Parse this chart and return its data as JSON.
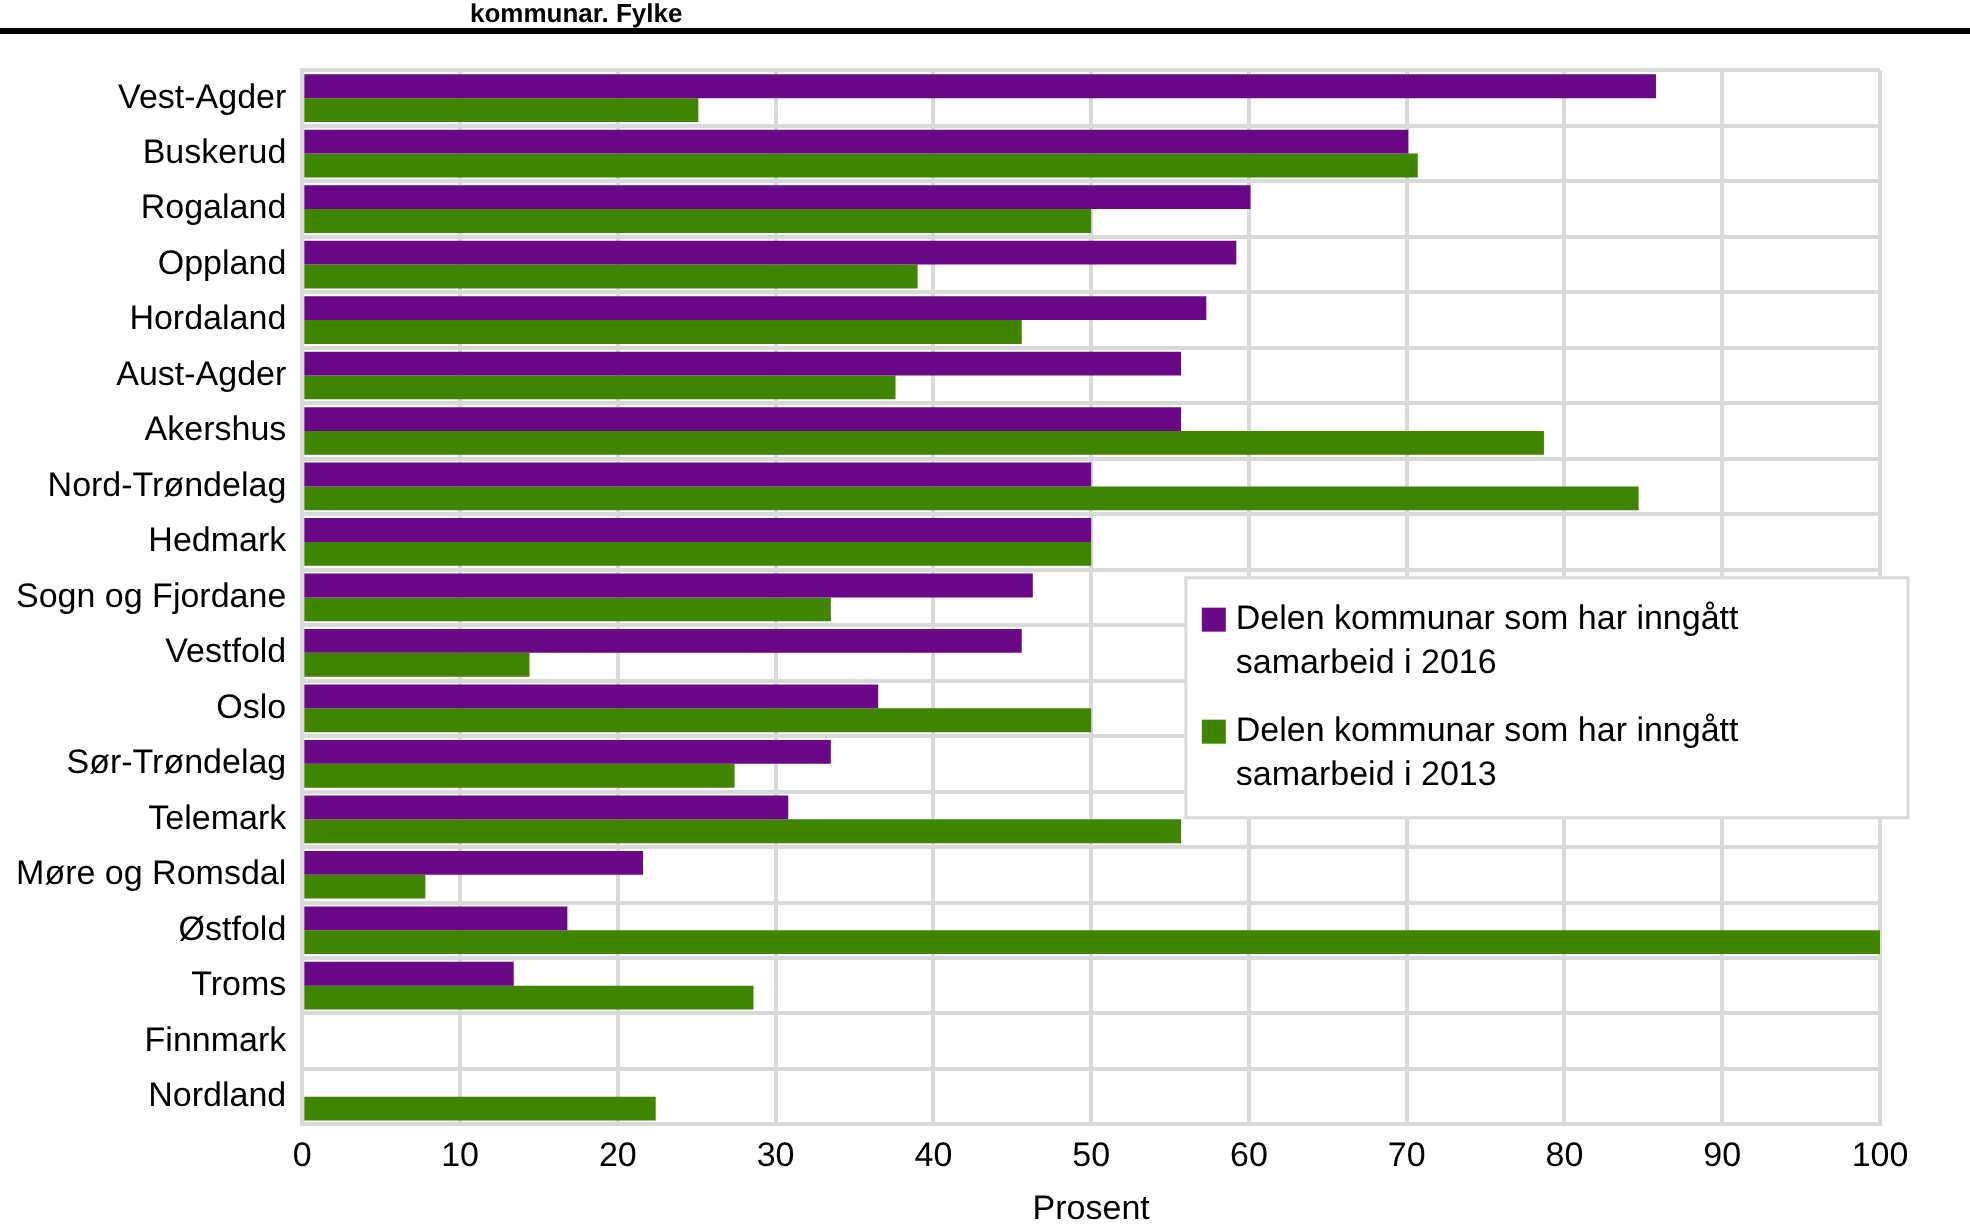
{
  "chart_data": {
    "type": "bar",
    "orientation": "horizontal",
    "title": "kommunar. Fylke",
    "xlabel": "Prosent",
    "categories": [
      "Vest-Agder",
      "Buskerud",
      "Rogaland",
      "Oppland",
      "Hordaland",
      "Aust-Agder",
      "Akershus",
      "Nord-Trøndelag",
      "Hedmark",
      "Sogn og Fjordane",
      "Vestfold",
      "Oslo",
      "Sør-Trøndelag",
      "Telemark",
      "Møre og Romsdal",
      "Østfold",
      "Troms",
      "Finnmark",
      "Nordland"
    ],
    "series": [
      {
        "name": "Delen kommunar som har inngått samarbeid i 2016",
        "color": "#6a0888",
        "values": [
          85.8,
          70.1,
          60.1,
          59.2,
          57.3,
          55.7,
          55.7,
          50,
          50,
          46.3,
          45.6,
          36.5,
          33.5,
          30.8,
          21.6,
          16.8,
          13.4,
          0,
          0
        ]
      },
      {
        "name": "Delen kommunar som har inngått samarbeid i 2013",
        "color": "#3f8500",
        "values": [
          25.1,
          70.7,
          50,
          39,
          45.6,
          37.6,
          78.7,
          84.7,
          50,
          33.5,
          14.4,
          50,
          27.4,
          55.7,
          7.8,
          100,
          28.6,
          0,
          22.4
        ]
      }
    ],
    "xlim": [
      0,
      100
    ],
    "xticks": [
      0,
      10,
      20,
      30,
      40,
      50,
      60,
      70,
      80,
      90,
      100
    ],
    "grid": true,
    "legend": "right"
  }
}
